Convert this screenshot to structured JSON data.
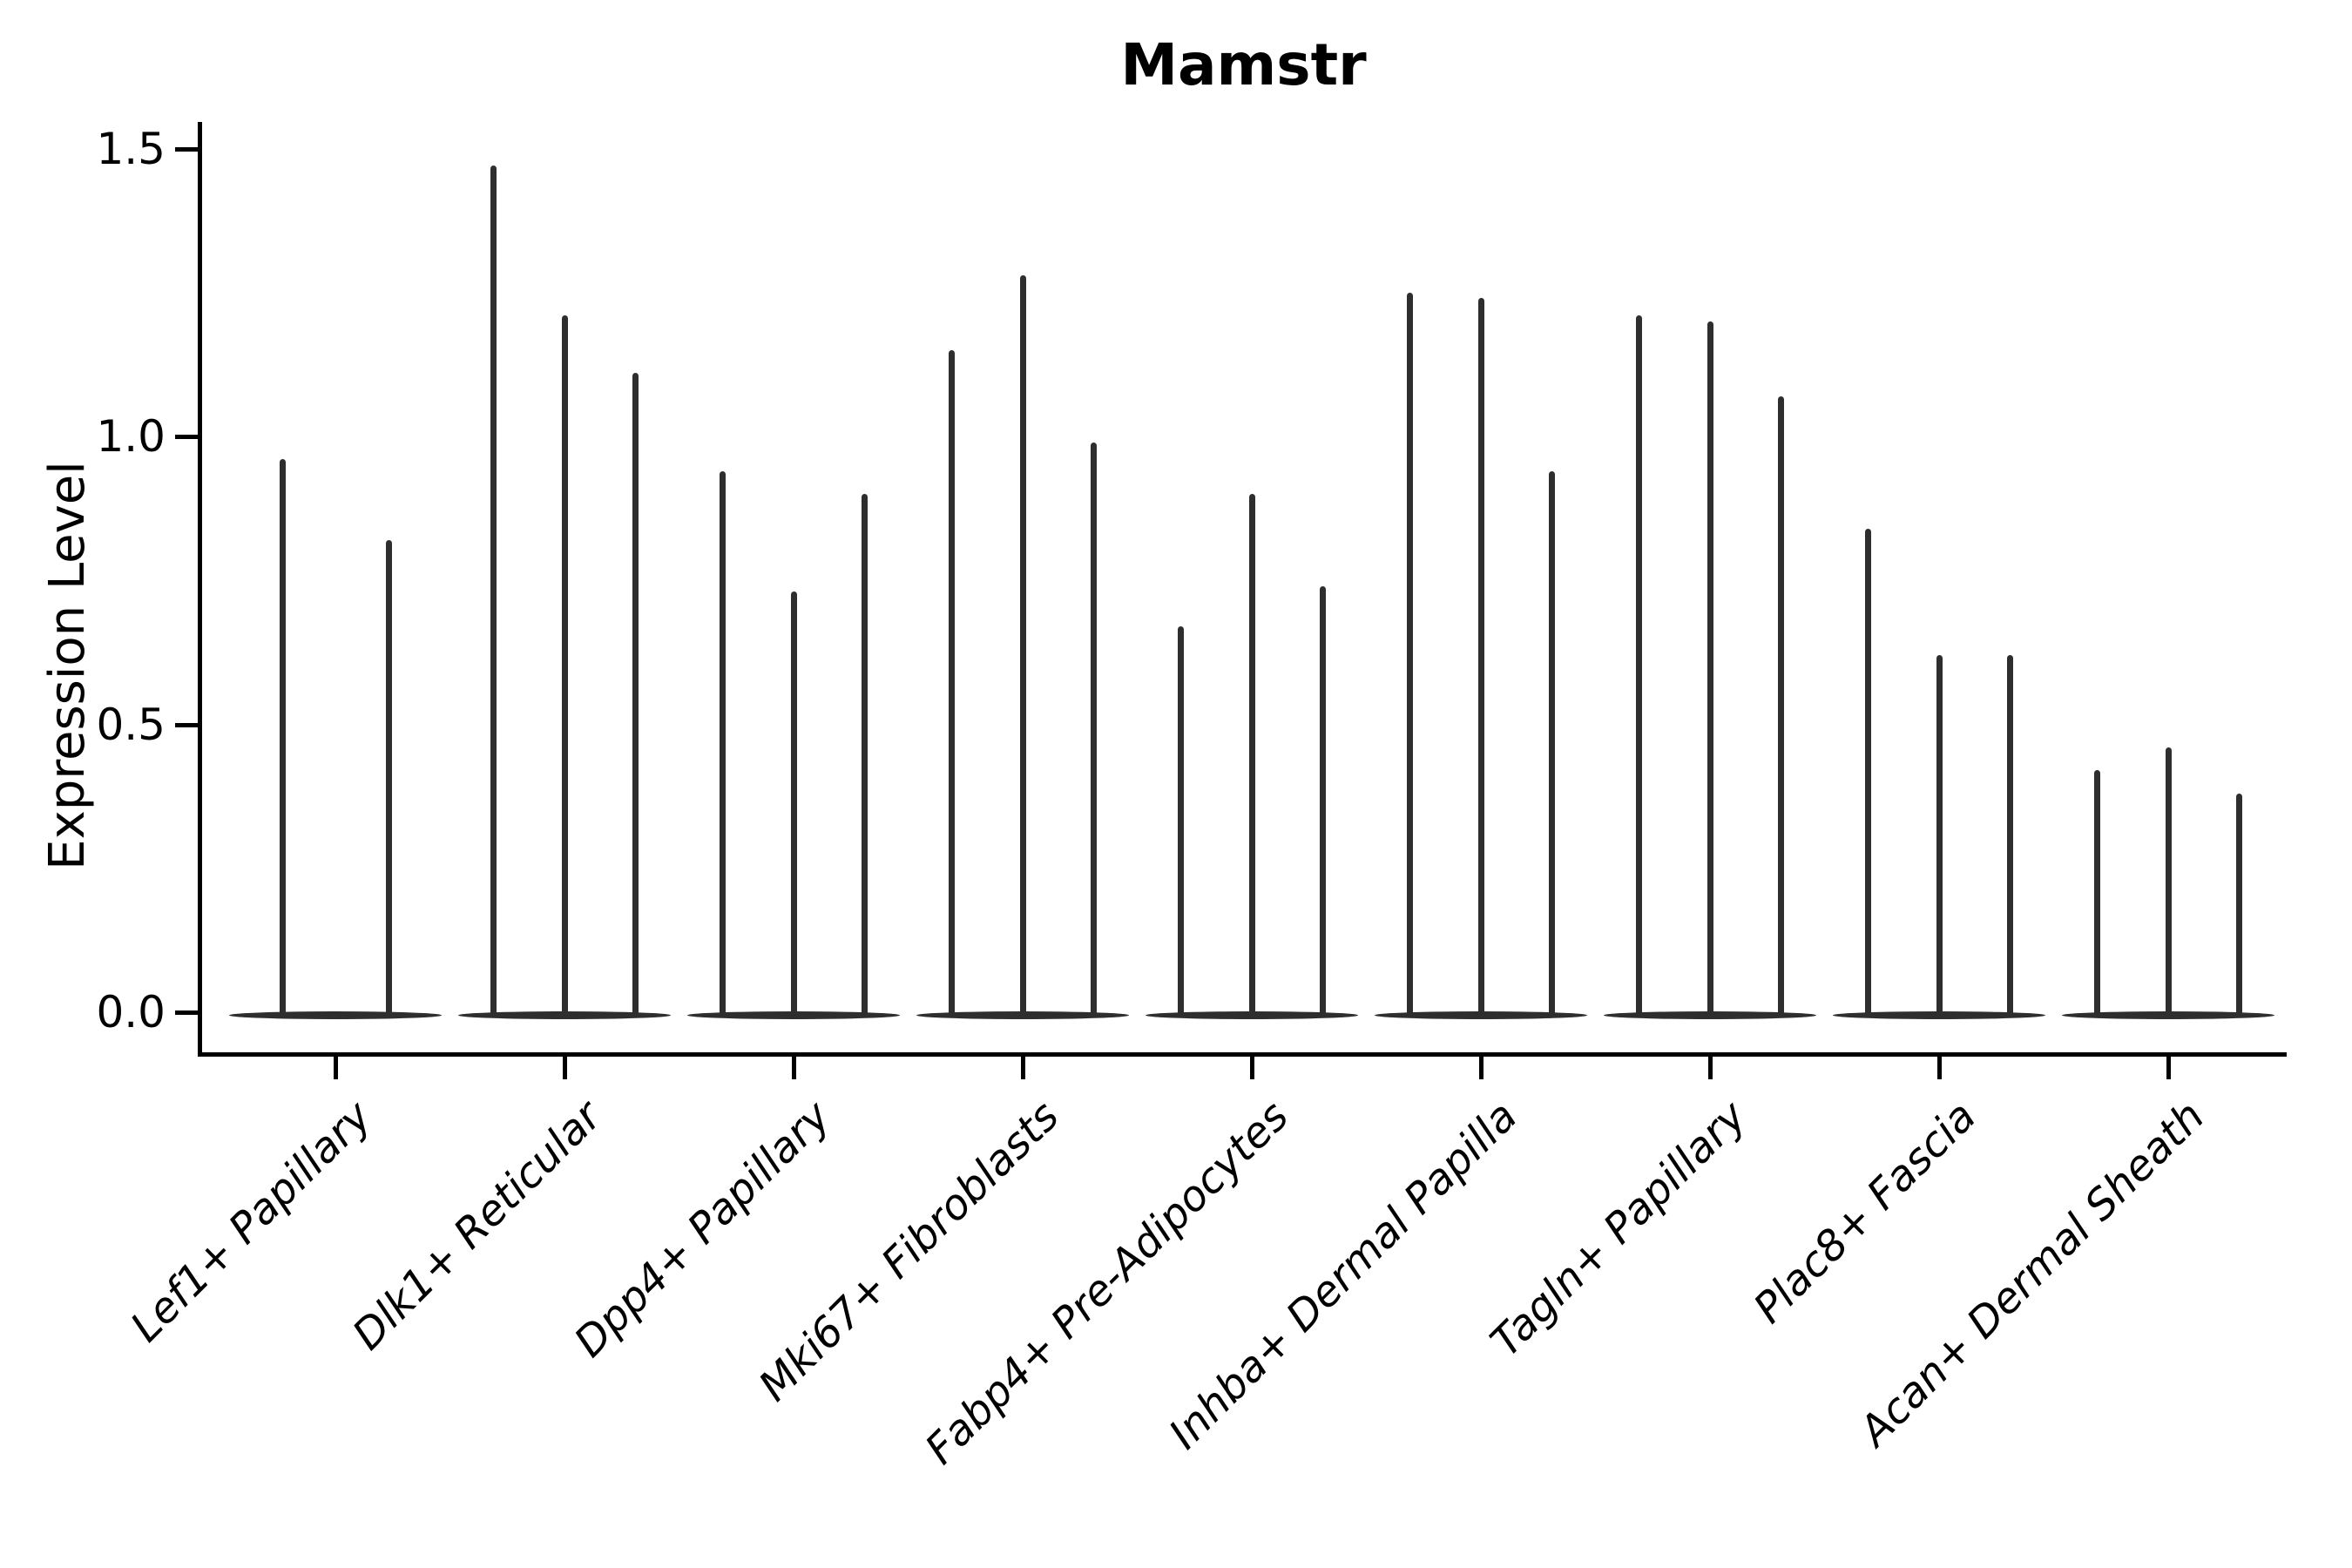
{
  "title": "Mamstr",
  "colors": {
    "violin": "#2e2e2e",
    "axis": "#000000",
    "text": "#000000",
    "background": "#ffffff"
  },
  "chart_data": {
    "type": "violin",
    "title": "Mamstr",
    "xlabel": "",
    "ylabel": "Expression Level",
    "grid": false,
    "legend": null,
    "ylim": [
      -0.08,
      1.55
    ],
    "yticks": [
      0.0,
      0.5,
      1.0,
      1.5
    ],
    "ytick_labels": [
      "0.0",
      "0.5",
      "1.0",
      "1.5"
    ],
    "categories": [
      "Lef1+ Papillary",
      "Dlk1+ Reticular",
      "Dpp4+ Papillary",
      "Mki67+ Fibroblasts",
      "Fabp4+ Pre-Adipocytes",
      "Inhba+ Dermal Papilla",
      "Tagln+ Papillary",
      "Plac8+ Fascia",
      "Acan+ Dermal Sheath"
    ],
    "groups": [
      {
        "label": "Lef1+ Papillary",
        "violin_peak_values": [
          0.96,
          0.82
        ]
      },
      {
        "label": "Dlk1+ Reticular",
        "violin_peak_values": [
          1.47,
          1.21,
          1.11
        ]
      },
      {
        "label": "Dpp4+ Papillary",
        "violin_peak_values": [
          0.94,
          0.73,
          0.9
        ]
      },
      {
        "label": "Mki67+ Fibroblasts",
        "violin_peak_values": [
          1.15,
          1.28,
          0.99
        ]
      },
      {
        "label": "Fabp4+ Pre-Adipocytes",
        "violin_peak_values": [
          0.67,
          0.9,
          0.74
        ]
      },
      {
        "label": "Inhba+ Dermal Papilla",
        "violin_peak_values": [
          1.25,
          1.24,
          0.94
        ]
      },
      {
        "label": "Tagln+ Papillary",
        "violin_peak_values": [
          1.21,
          1.2,
          1.07
        ]
      },
      {
        "label": "Plac8+ Fascia",
        "violin_peak_values": [
          0.84,
          0.62,
          0.62
        ]
      },
      {
        "label": "Acan+ Dermal Sheath",
        "violin_peak_values": [
          0.42,
          0.46,
          0.38
        ]
      }
    ],
    "baseline_value": 0.0
  }
}
